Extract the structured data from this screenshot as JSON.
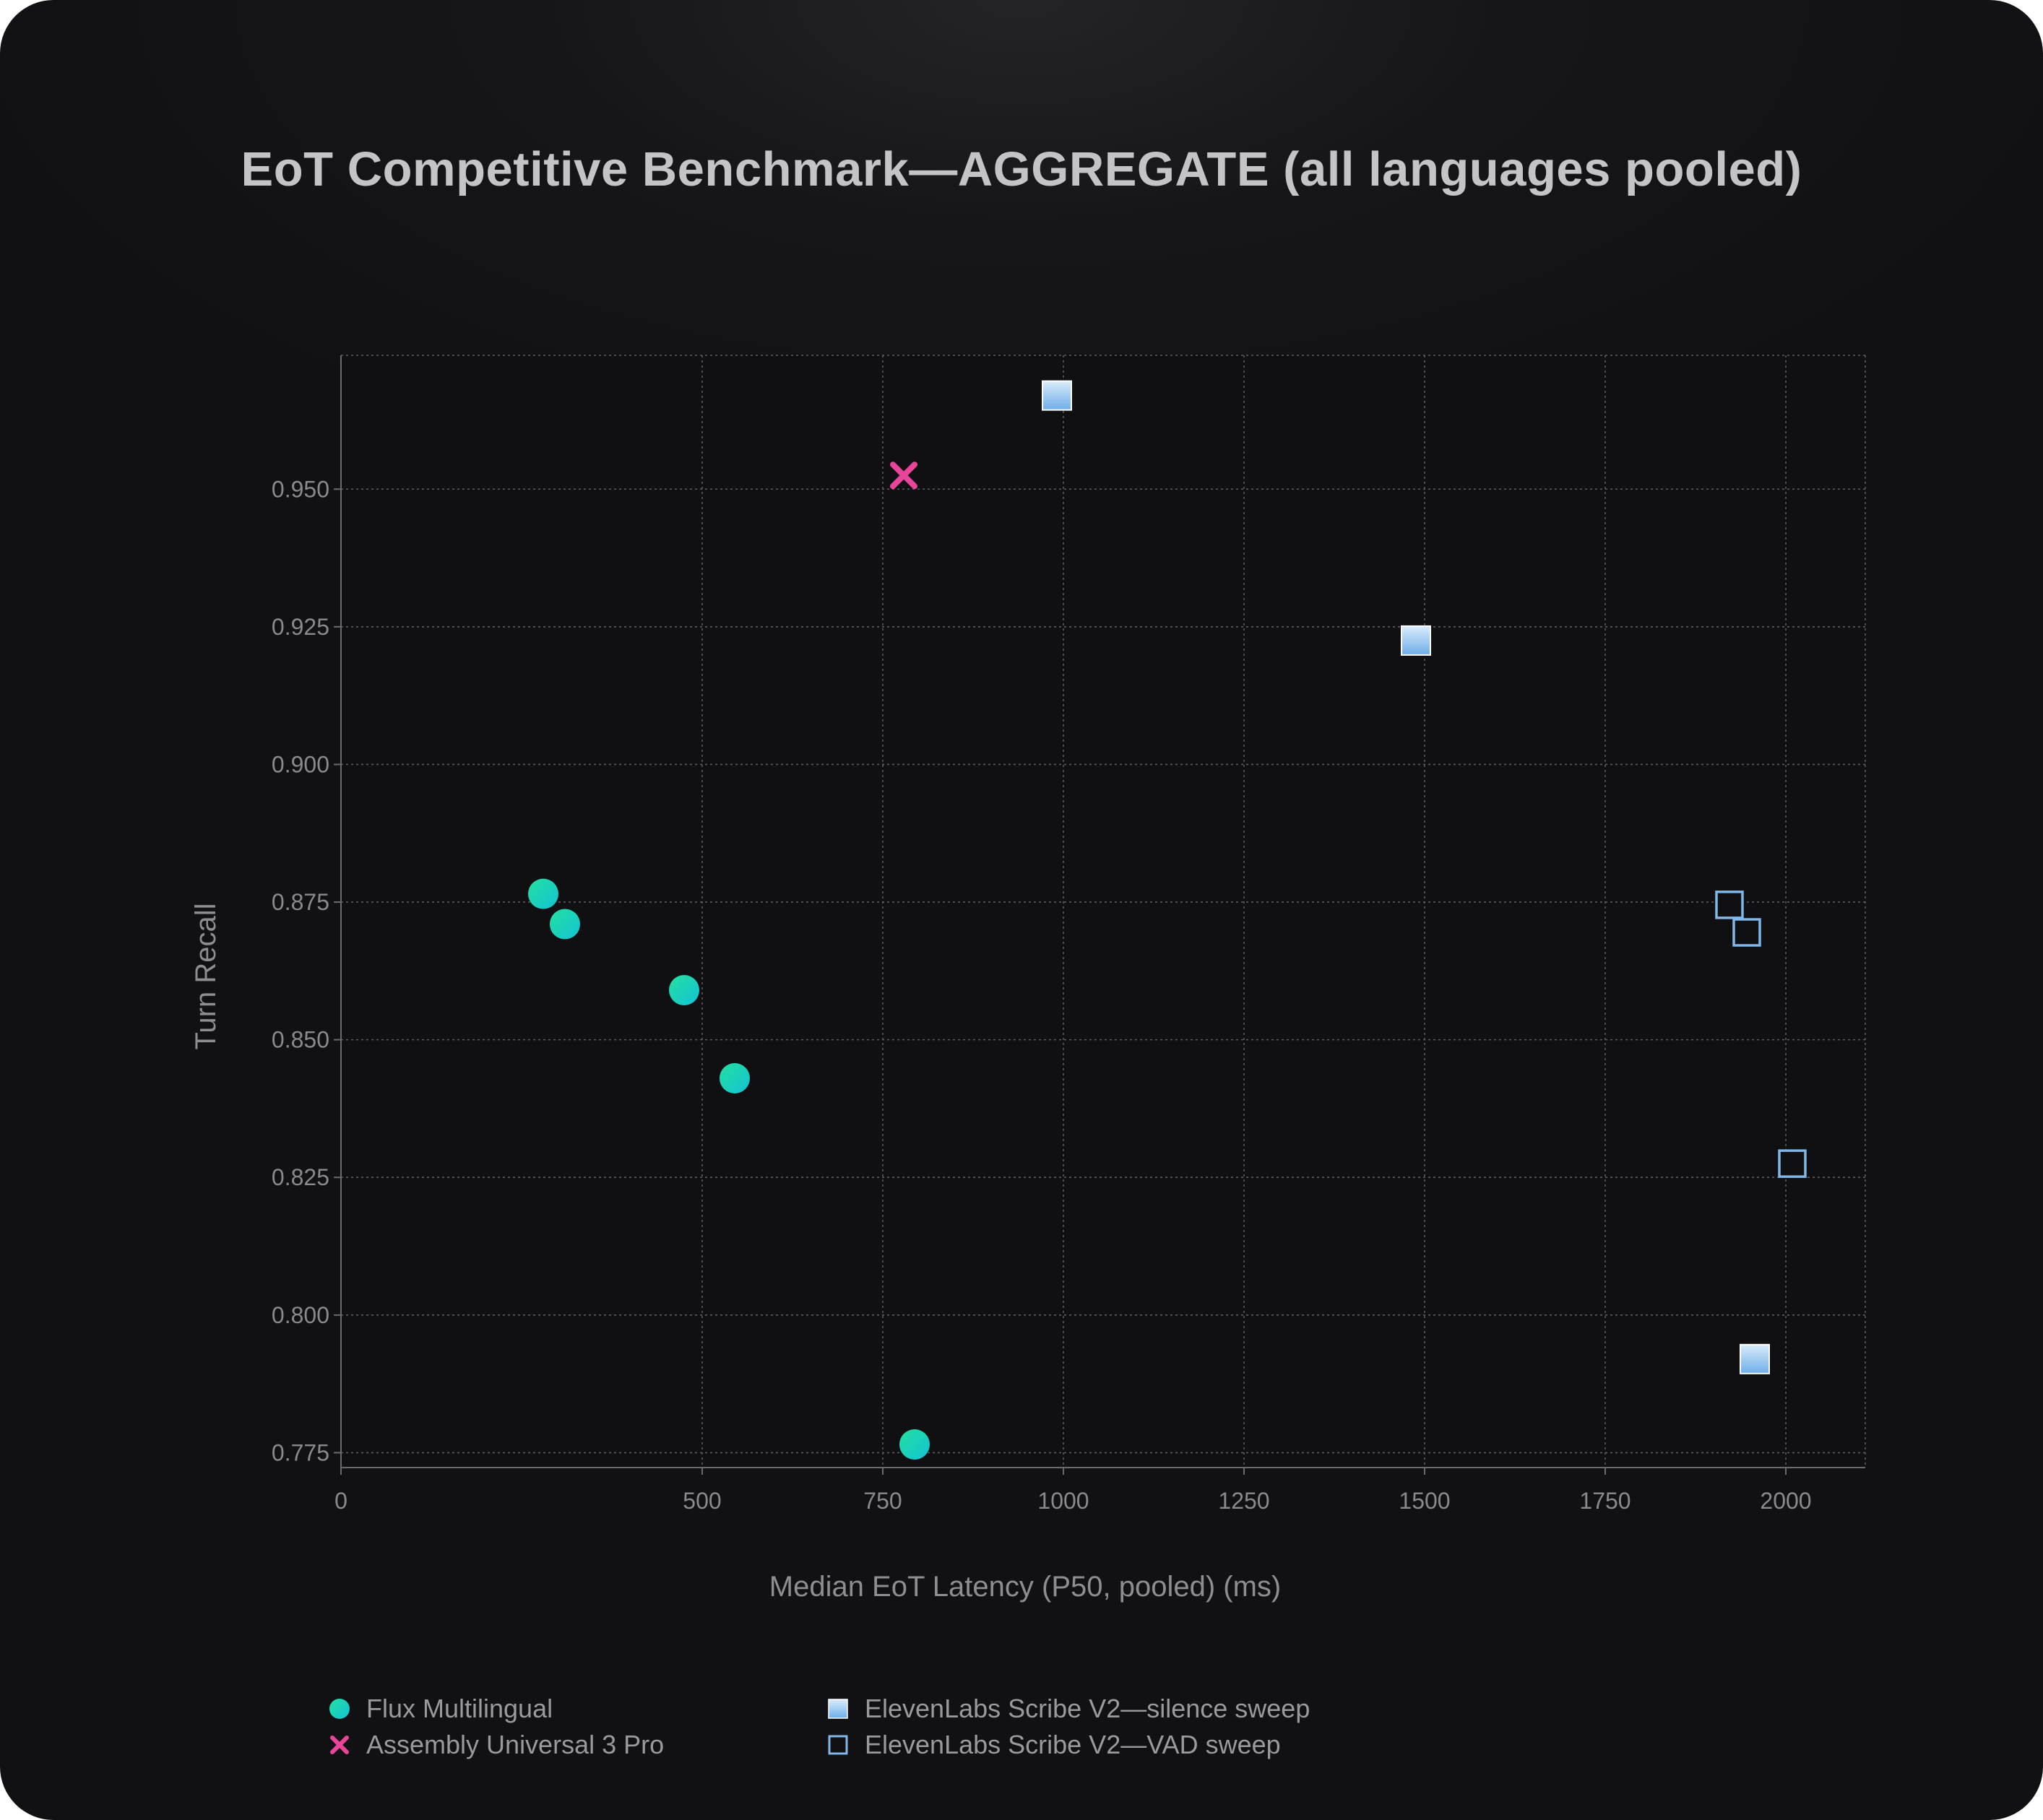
{
  "chart_data": {
    "type": "scatter",
    "title": "EoT Competitive Benchmark—AGGREGATE (all languages pooled)",
    "xlabel": "Median EoT Latency (P50, pooled) (ms)",
    "ylabel": "Turn Recall",
    "xlim": [
      0,
      2110
    ],
    "ylim": [
      0.7723,
      0.9743
    ],
    "x_ticks": [
      0,
      500,
      750,
      1000,
      1250,
      1500,
      1750,
      2000
    ],
    "y_ticks": [
      0.775,
      0.8,
      0.825,
      0.85,
      0.875,
      0.9,
      0.925,
      0.95
    ],
    "x_tick_labels": [
      "0",
      "500",
      "750",
      "1000",
      "1250",
      "1500",
      "1750",
      "2000"
    ],
    "y_tick_labels": [
      "0.775",
      "0.800",
      "0.825",
      "0.850",
      "0.875",
      "0.900",
      "0.925",
      "0.950"
    ],
    "grid": true,
    "legend_position": "bottom",
    "series": [
      {
        "name": "Flux Multilingual",
        "marker": "circle",
        "color": "#1fd6a8",
        "color_alt": "#14c9cf",
        "points": [
          {
            "x": 280,
            "y": 0.8765
          },
          {
            "x": 310,
            "y": 0.871
          },
          {
            "x": 475,
            "y": 0.859
          },
          {
            "x": 545,
            "y": 0.843
          },
          {
            "x": 794,
            "y": 0.7765
          }
        ]
      },
      {
        "name": "Assembly Universal 3 Pro",
        "marker": "x",
        "color": "#e8449a",
        "points": [
          {
            "x": 779,
            "y": 0.9525
          }
        ]
      },
      {
        "name": "ElevenLabs Scribe V2—silence sweep",
        "marker": "square-filled",
        "color": "#a9d3f5",
        "color_alt": "#5aa2e6",
        "points": [
          {
            "x": 991,
            "y": 0.967
          },
          {
            "x": 1488,
            "y": 0.9225
          },
          {
            "x": 1957,
            "y": 0.792
          }
        ]
      },
      {
        "name": "ElevenLabs Scribe V2—VAD sweep",
        "marker": "square-open",
        "color": "#7fb7e8",
        "points": [
          {
            "x": 1922,
            "y": 0.8745
          },
          {
            "x": 1946,
            "y": 0.8695
          },
          {
            "x": 2009,
            "y": 0.8275
          }
        ]
      }
    ]
  }
}
